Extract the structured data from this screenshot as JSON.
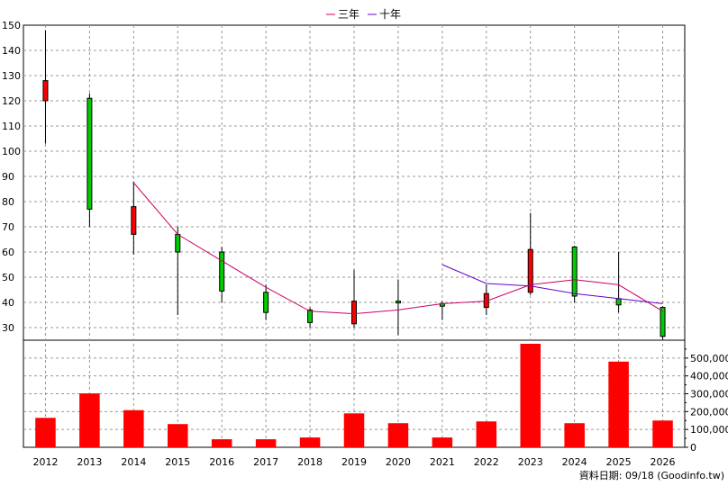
{
  "legend": [
    {
      "label": "三年",
      "color": "#cc0066"
    },
    {
      "label": "十年",
      "color": "#6600cc"
    }
  ],
  "footer": "資料日期: 09/18 (Goodinfo.tw)",
  "chart_data": [
    {
      "type": "candlestick",
      "x": [
        "2012",
        "2013",
        "2014",
        "2015",
        "2016",
        "2017",
        "2018",
        "2019",
        "2020",
        "2021",
        "2022",
        "2023",
        "2024",
        "2025",
        "2026"
      ],
      "ylim": [
        25,
        150
      ],
      "yticks": [
        30,
        40,
        50,
        60,
        70,
        80,
        90,
        100,
        110,
        120,
        130,
        140,
        150
      ],
      "grid": true,
      "ohlc": [
        {
          "open": 120.0,
          "high": 148.0,
          "low": 103.0,
          "close": 128.0
        },
        {
          "open": 121.0,
          "high": 123.0,
          "low": 70.0,
          "close": 77.0
        },
        {
          "open": 67.0,
          "high": 88.0,
          "low": 59.0,
          "close": 78.0
        },
        {
          "open": 67.0,
          "high": 70.0,
          "low": 35.0,
          "close": 60.0
        },
        {
          "open": 60.0,
          "high": 62.0,
          "low": 40.0,
          "close": 44.5
        },
        {
          "open": 44.0,
          "high": 47.0,
          "low": 33.0,
          "close": 36.0
        },
        {
          "open": 37.0,
          "high": 38.0,
          "low": 30.0,
          "close": 32.0
        },
        {
          "open": 31.5,
          "high": 53.0,
          "low": 30.0,
          "close": 40.5
        },
        {
          "open": 40.5,
          "high": 49.0,
          "low": 27.0,
          "close": 40.0
        },
        {
          "open": 39.5,
          "high": 40.5,
          "low": 33.0,
          "close": 38.5
        },
        {
          "open": 38.0,
          "high": 47.0,
          "low": 35.0,
          "close": 43.5
        },
        {
          "open": 44.0,
          "high": 75.5,
          "low": 43.0,
          "close": 61.0
        },
        {
          "open": 62.0,
          "high": 62.5,
          "low": 40.0,
          "close": 42.5
        },
        {
          "open": 41.5,
          "high": 60.0,
          "low": 36.0,
          "close": 39.0
        },
        {
          "open": 38.0,
          "high": 38.5,
          "low": 25.0,
          "close": 26.5
        }
      ],
      "series": [
        {
          "name": "三年",
          "color": "#cc0066",
          "values": [
            null,
            null,
            87.5,
            67.0,
            56.5,
            46.0,
            36.5,
            35.5,
            37.0,
            39.5,
            40.5,
            47.0,
            49.0,
            47.0,
            36.5
          ]
        },
        {
          "name": "十年",
          "color": "#6600cc",
          "values": [
            null,
            null,
            null,
            null,
            null,
            null,
            null,
            null,
            null,
            55.0,
            47.5,
            46.5,
            43.5,
            41.5,
            39.5
          ]
        }
      ],
      "up_color": "#ff0000",
      "down_color": "#00cc00"
    },
    {
      "type": "bar",
      "x": [
        "2012",
        "2013",
        "2014",
        "2015",
        "2016",
        "2017",
        "2018",
        "2019",
        "2020",
        "2021",
        "2022",
        "2023",
        "2024",
        "2025",
        "2026"
      ],
      "values": [
        165000,
        302000,
        208000,
        130000,
        45000,
        45000,
        55000,
        190000,
        135000,
        55000,
        145000,
        580000,
        135000,
        480000,
        150000
      ],
      "ylim": [
        0,
        600000
      ],
      "yticks": [
        "0",
        "100,000",
        "200,000",
        "300,000",
        "400,000",
        "500,000"
      ],
      "grid": true,
      "color": "#ff0000"
    }
  ]
}
